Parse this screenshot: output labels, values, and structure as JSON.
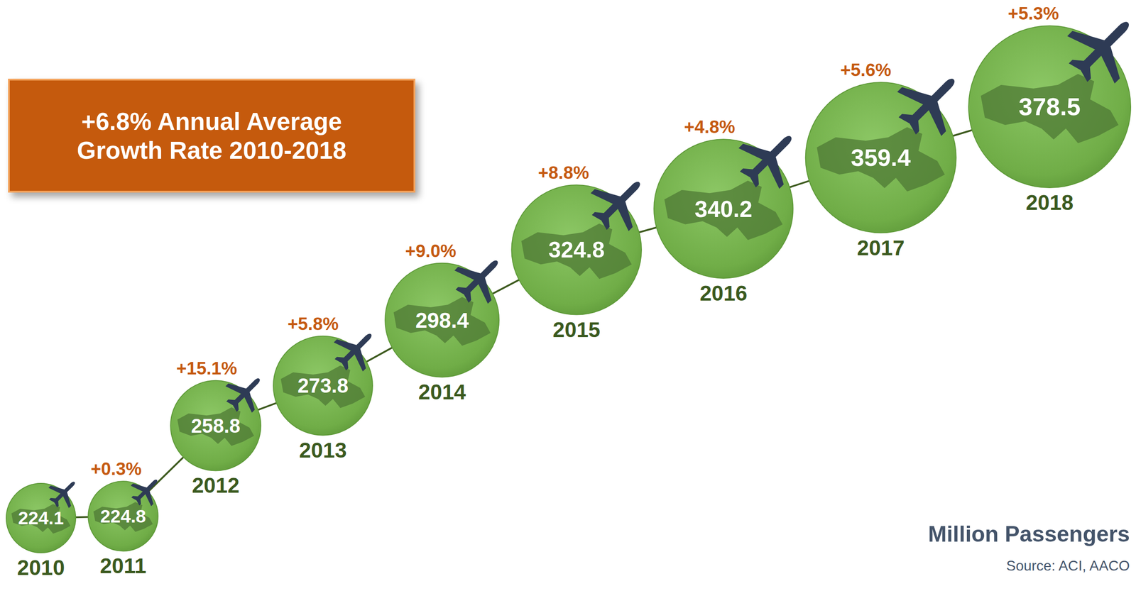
{
  "chart_data": {
    "type": "line",
    "marker": "circle",
    "color": "#70ad47",
    "data_labels": true,
    "tick_labels": "x",
    "categories": [
      "2010",
      "2011",
      "2012",
      "2013",
      "2014",
      "2015",
      "2016",
      "2017",
      "2018"
    ],
    "values": [
      224.1,
      224.8,
      258.8,
      273.8,
      298.4,
      324.8,
      340.2,
      359.4,
      378.5
    ],
    "growth": {
      "values": [
        null,
        0.3,
        15.1,
        5.8,
        9.0,
        8.8,
        4.8,
        5.6,
        5.3
      ],
      "value_labels": [
        null,
        "+0.3%",
        "+15.1%",
        "+5.8%",
        "+9.0%",
        "+8.8%",
        "+4.8%",
        "+5.6%",
        "+5.3%"
      ]
    },
    "annotation": "+6.8% Annual Average Growth Rate 2010-2018",
    "unit_label": "Million Passengers",
    "source": "Source: ACI, AACO"
  }
}
